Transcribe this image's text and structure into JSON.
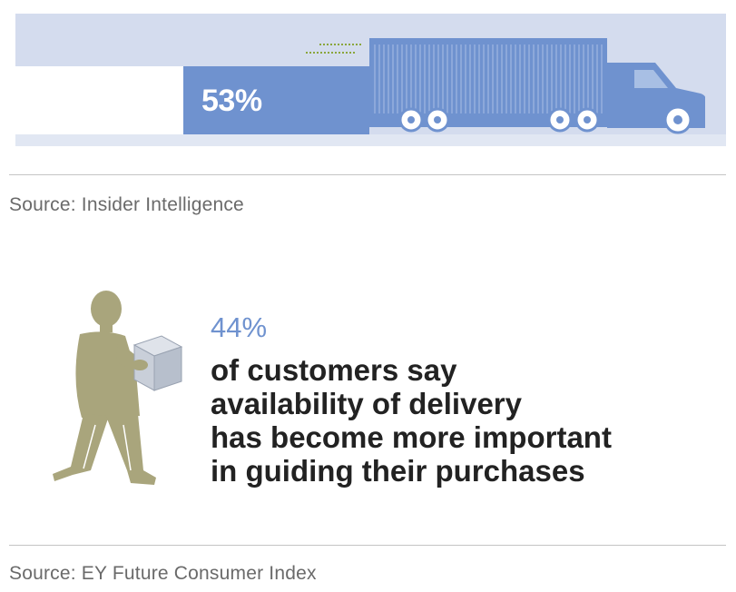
{
  "truck_infographic": {
    "percent": "53%",
    "colors": {
      "bar": "#6f92cf",
      "background": "#d4dcee",
      "dots": "#8aa63c"
    },
    "icons": [
      "truck-icon"
    ]
  },
  "source_1": "Source: Insider Intelligence",
  "stat": {
    "percent": "44%",
    "lines": [
      "of customers say",
      "availability of delivery",
      "has become more important",
      "in guiding their purchases"
    ],
    "colors": {
      "percent": "#6f92cf",
      "figure": "#a9a57c"
    },
    "icons": [
      "delivery-person-icon",
      "package-icon"
    ]
  },
  "source_2": "Source: EY Future Consumer Index"
}
